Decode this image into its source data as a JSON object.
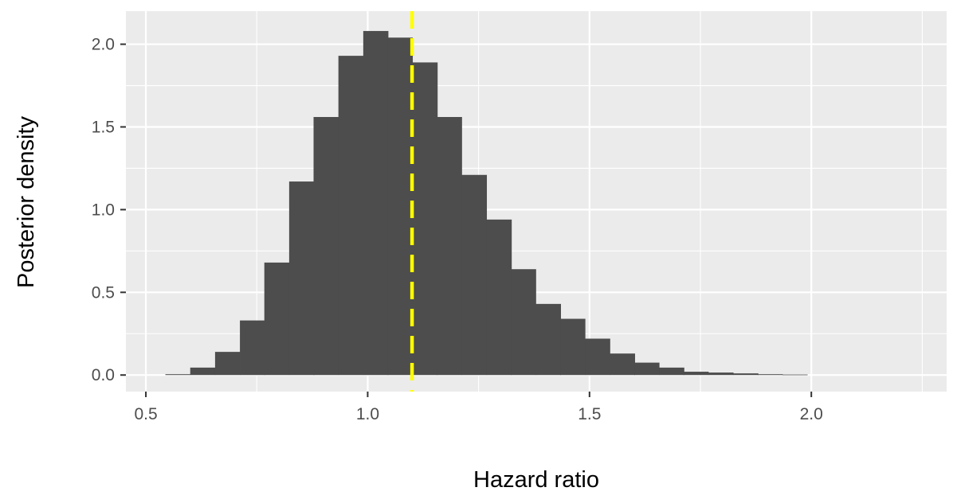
{
  "chart_data": {
    "type": "bar",
    "xlabel": "Hazard ratio",
    "ylabel": "Posterior density",
    "xlim": [
      0.455,
      2.305
    ],
    "ylim": [
      -0.1,
      2.2
    ],
    "x_ticks": [
      0.5,
      1.0,
      1.5,
      2.0
    ],
    "x_tick_labels": [
      "0.5",
      "1.0",
      "1.5",
      "2.0"
    ],
    "y_ticks": [
      0.0,
      0.5,
      1.0,
      1.5,
      2.0
    ],
    "y_tick_labels": [
      "0.0",
      "0.5",
      "1.0",
      "1.5",
      "2.0"
    ],
    "bin_width": 0.0556,
    "bin_starts": [
      0.544,
      0.6,
      0.656,
      0.712,
      0.767,
      0.823,
      0.878,
      0.934,
      0.99,
      1.045,
      1.101,
      1.156,
      1.212,
      1.268,
      1.323,
      1.379,
      1.434,
      1.49,
      1.546,
      1.601,
      1.657,
      1.712,
      1.768,
      1.824,
      1.879,
      1.935
    ],
    "values": [
      0.005,
      0.045,
      0.14,
      0.33,
      0.68,
      1.17,
      1.56,
      1.93,
      2.08,
      2.04,
      1.89,
      1.56,
      1.21,
      0.94,
      0.64,
      0.43,
      0.34,
      0.22,
      0.13,
      0.075,
      0.045,
      0.02,
      0.015,
      0.01,
      0.005,
      0.003
    ],
    "reference_line": {
      "x": 1.1,
      "color": "#ffff00",
      "style": "dashed"
    },
    "bar_color": "#4d4d4d",
    "panel_background": "#ebebeb",
    "grid": true
  }
}
